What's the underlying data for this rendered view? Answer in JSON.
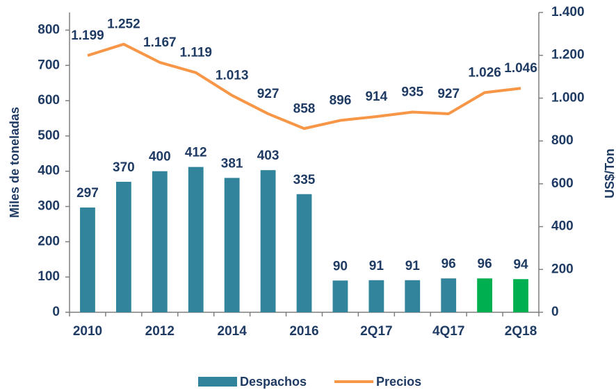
{
  "chart_data": {
    "type": "bar-line",
    "categories": [
      "2010",
      null,
      "2012",
      null,
      "2014",
      null,
      "2016",
      null,
      "2Q17",
      null,
      "4Q17",
      null,
      "2Q18"
    ],
    "ylabel": "Miles de toneladas",
    "y2label": "US$/Ton",
    "ylim": [
      0,
      850
    ],
    "yticks": [
      0,
      100,
      200,
      300,
      400,
      500,
      600,
      700,
      800
    ],
    "y2lim": [
      0,
      1400
    ],
    "y2ticks": [
      0,
      200,
      400,
      600,
      800,
      {
        "value": 1000,
        "label": "1.000"
      },
      {
        "value": 1200,
        "label": "1.200"
      },
      {
        "value": 1400,
        "label": "1.400"
      }
    ],
    "series": [
      {
        "name": "Despachos",
        "type": "bar",
        "color": "#31849b",
        "colors": [
          "#31849b",
          "#31849b",
          "#31849b",
          "#31849b",
          "#31849b",
          "#31849b",
          "#31849b",
          "#31849b",
          "#31849b",
          "#31849b",
          "#31849b",
          "#00b050",
          "#00b050"
        ],
        "values": [
          297,
          370,
          400,
          412,
          381,
          403,
          335,
          90,
          91,
          91,
          96,
          96,
          94
        ]
      },
      {
        "name": "Precios",
        "type": "line",
        "axis": "y2",
        "color": "#f79646",
        "values": [
          1199,
          1252,
          1167,
          1119,
          1013,
          927,
          858,
          896,
          914,
          935,
          927,
          1026,
          1046
        ],
        "value_labels": [
          "1.199",
          "1.252",
          "1.167",
          "1.119",
          "1.013",
          "927",
          "858",
          "896",
          "914",
          "935",
          "927",
          "1.026",
          "1.046"
        ]
      }
    ],
    "legend": "bottom"
  }
}
